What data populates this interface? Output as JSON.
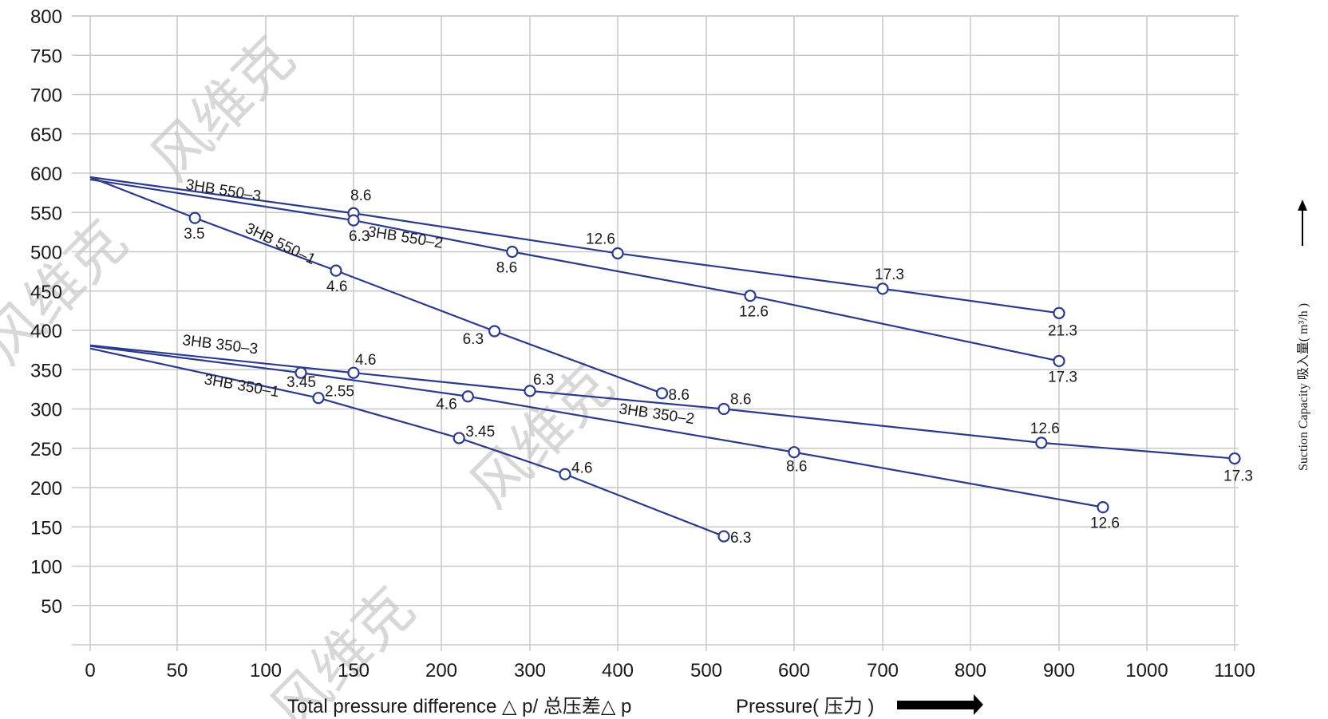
{
  "chart_data": {
    "type": "line",
    "title": "",
    "xlabel": "Total pressure difference △ p/ 总压差△ p",
    "xlabel2": "Pressure( 压力 )",
    "ylabel": "Suction  Capacity 吸入量( m³/h )",
    "watermark": "风维克",
    "grid": true,
    "line_color": "#2b3a8c",
    "grid_color": "#c8c8c8",
    "xlim": [
      0,
      1100
    ],
    "ylim": [
      0,
      800
    ],
    "x_ticks": [
      {
        "v": 0,
        "label": "0"
      },
      {
        "v": 50,
        "label": "50"
      },
      {
        "v": 100,
        "label": "100"
      },
      {
        "v": 150,
        "label": "150"
      },
      {
        "v": 200,
        "label": "200"
      },
      {
        "v": 300,
        "label": "300"
      },
      {
        "v": 400,
        "label": "400"
      },
      {
        "v": 500,
        "label": "500"
      },
      {
        "v": 600,
        "label": "600"
      },
      {
        "v": 700,
        "label": "700"
      },
      {
        "v": 800,
        "label": "800"
      },
      {
        "v": 900,
        "label": "900"
      },
      {
        "v": 1000,
        "label": "1000"
      },
      {
        "v": 1100,
        "label": "1100"
      }
    ],
    "y_ticks": [
      {
        "v": 50,
        "label": "50"
      },
      {
        "v": 100,
        "label": "100"
      },
      {
        "v": 150,
        "label": "150"
      },
      {
        "v": 200,
        "label": "200"
      },
      {
        "v": 250,
        "label": "250"
      },
      {
        "v": 300,
        "label": "300"
      },
      {
        "v": 350,
        "label": "350"
      },
      {
        "v": 400,
        "label": "400"
      },
      {
        "v": 450,
        "label": "450"
      },
      {
        "v": 500,
        "label": "500"
      },
      {
        "v": 550,
        "label": "550"
      },
      {
        "v": 600,
        "label": "600"
      },
      {
        "v": 650,
        "label": "650"
      },
      {
        "v": 700,
        "label": "700"
      },
      {
        "v": 750,
        "label": "750"
      },
      {
        "v": 800,
        "label": "800"
      }
    ],
    "series": [
      {
        "name": "3HB 550–3",
        "points": [
          {
            "x": 0,
            "y": 595
          },
          {
            "x": 150,
            "y": 549,
            "label": "8.6"
          },
          {
            "x": 400,
            "y": 498,
            "label": "12.6"
          },
          {
            "x": 700,
            "y": 453,
            "label": "17.3"
          },
          {
            "x": 900,
            "y": 422,
            "label": "21.3"
          }
        ]
      },
      {
        "name": "3HB 550–2",
        "points": [
          {
            "x": 0,
            "y": 592
          },
          {
            "x": 150,
            "y": 540,
            "label": "6.3"
          },
          {
            "x": 280,
            "y": 500,
            "label": "8.6"
          },
          {
            "x": 550,
            "y": 444,
            "label": "12.6"
          },
          {
            "x": 900,
            "y": 361,
            "label": "17.3"
          }
        ]
      },
      {
        "name": "3HB 550–1",
        "points": [
          {
            "x": 0,
            "y": 595
          },
          {
            "x": 60,
            "y": 543,
            "label": "3.5"
          },
          {
            "x": 140,
            "y": 476,
            "label": "4.6"
          },
          {
            "x": 260,
            "y": 399,
            "label": "6.3"
          },
          {
            "x": 450,
            "y": 320,
            "label": "8.6"
          }
        ]
      },
      {
        "name": "3HB 350–3",
        "points": [
          {
            "x": 0,
            "y": 381
          },
          {
            "x": 150,
            "y": 346,
            "label": "4.6"
          },
          {
            "x": 300,
            "y": 323,
            "label": "6.3"
          },
          {
            "x": 520,
            "y": 300,
            "label": "8.6"
          },
          {
            "x": 880,
            "y": 257,
            "label": "12.6"
          },
          {
            "x": 1100,
            "y": 237,
            "label": "17.3"
          }
        ]
      },
      {
        "name": "3HB 350–2",
        "points": [
          {
            "x": 0,
            "y": 380
          },
          {
            "x": 120,
            "y": 346,
            "label": "3.45"
          },
          {
            "x": 230,
            "y": 316,
            "label": "4.6"
          },
          {
            "x": 600,
            "y": 245,
            "label": "8.6"
          },
          {
            "x": 950,
            "y": 175,
            "label": "12.6"
          }
        ]
      },
      {
        "name": "3HB 350–1",
        "points": [
          {
            "x": 0,
            "y": 377
          },
          {
            "x": 130,
            "y": 314,
            "label": "2.55"
          },
          {
            "x": 220,
            "y": 263,
            "label": "3.45"
          },
          {
            "x": 340,
            "y": 217,
            "label": "4.6"
          },
          {
            "x": 520,
            "y": 138,
            "label": "6.3"
          }
        ]
      }
    ]
  }
}
